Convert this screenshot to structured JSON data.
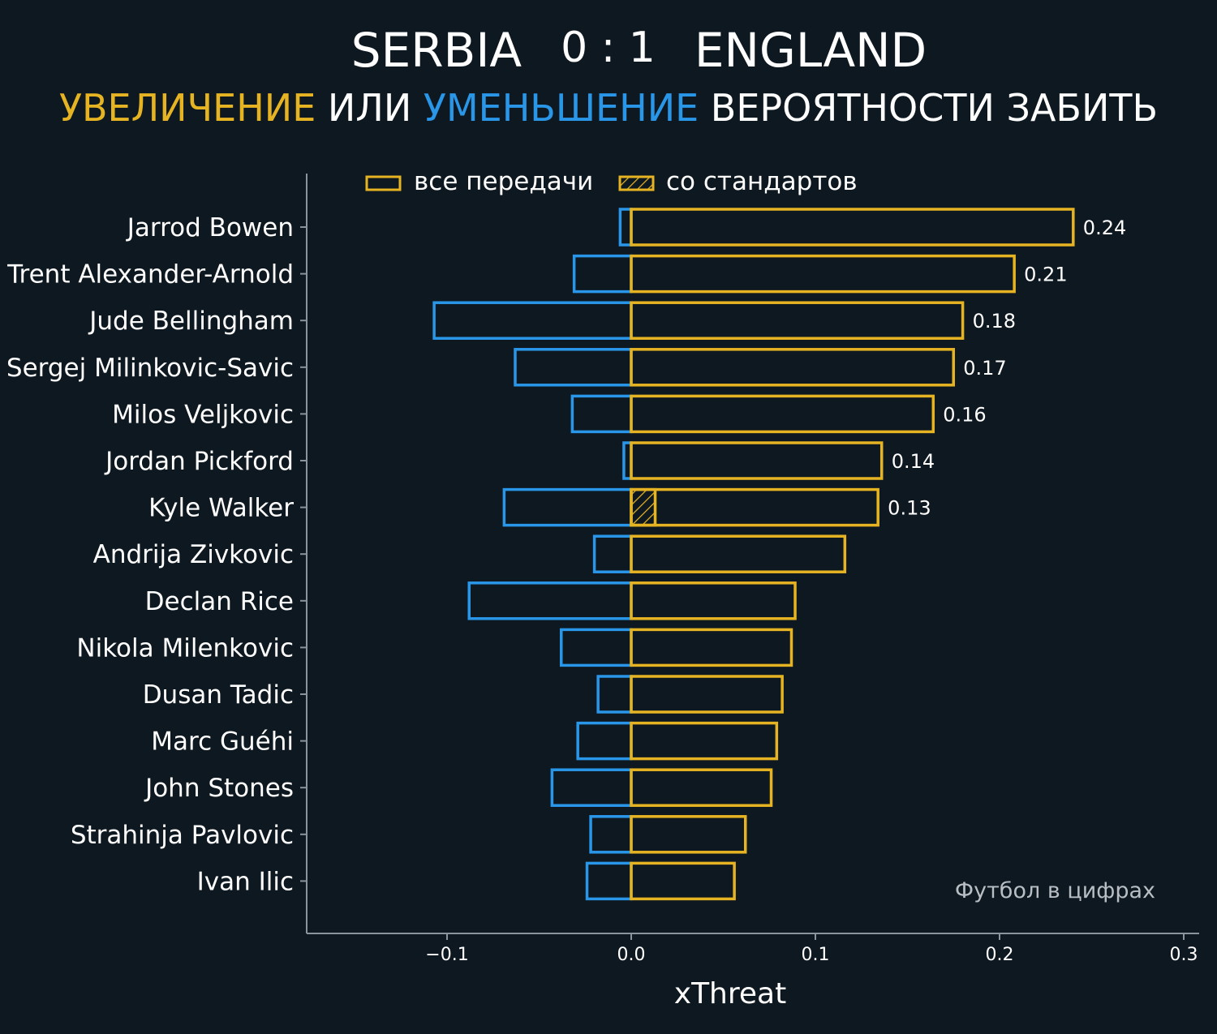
{
  "header": {
    "home_team": "SERBIA",
    "score": "0 : 1",
    "away_team": "ENGLAND",
    "subtitle_increase": "УВЕЛИЧЕНИЕ",
    "subtitle_or": " ИЛИ ",
    "subtitle_decrease": "УМЕНЬШЕНИЕ",
    "subtitle_rest": " ВЕРОЯТНОСТИ ЗАБИТЬ"
  },
  "colors": {
    "background": "#0e1820",
    "increase": "#e6b422",
    "decrease": "#2a96e8",
    "axis": "#8a949c"
  },
  "legend": {
    "all_passes": "все передачи",
    "set_pieces": "со стандартов"
  },
  "watermark": "Футбол в цифрах",
  "chart_data": {
    "type": "bar",
    "orientation": "horizontal",
    "xlabel": "xThreat",
    "xlim": [
      -0.175,
      0.31
    ],
    "xticks": [
      -0.1,
      0.0,
      0.1,
      0.2,
      0.3
    ],
    "xtick_labels": [
      "−0.1",
      "0.0",
      "0.1",
      "0.2",
      "0.3"
    ],
    "legend_position": "top-left",
    "categories": [
      "Jarrod Bowen",
      "Trent Alexander-Arnold",
      "Jude Bellingham",
      "Sergej Milinkovic-Savic",
      "Milos Veljkovic",
      "Jordan Pickford",
      "Kyle Walker",
      "Andrija Zivkovic",
      "Declan Rice",
      "Nikola Milenkovic",
      "Dusan Tadic",
      "Marc Guéhi",
      "John Stones",
      "Strahinja Pavlovic",
      "Ivan Ilic"
    ],
    "series": [
      {
        "values": [
          0.24,
          0.208,
          0.18,
          0.175,
          0.164,
          0.136,
          0.134,
          0.116,
          0.089,
          0.087,
          0.082,
          0.079,
          0.076,
          0.062,
          0.056
        ]
      },
      {
        "values": [
          -0.006,
          -0.031,
          -0.107,
          -0.063,
          -0.032,
          -0.004,
          -0.069,
          -0.02,
          -0.088,
          -0.038,
          -0.018,
          -0.029,
          -0.043,
          -0.022,
          -0.024
        ]
      },
      {
        "values": [
          0,
          0,
          0,
          0,
          0,
          0,
          0.013,
          0,
          0,
          0,
          0,
          0,
          0,
          0,
          0
        ]
      }
    ],
    "data_labels": [
      "0.24",
      "0.21",
      "0.18",
      "0.17",
      "0.16",
      "0.14",
      "0.13",
      "",
      "",
      "",
      "",
      "",
      "",
      "",
      ""
    ]
  }
}
